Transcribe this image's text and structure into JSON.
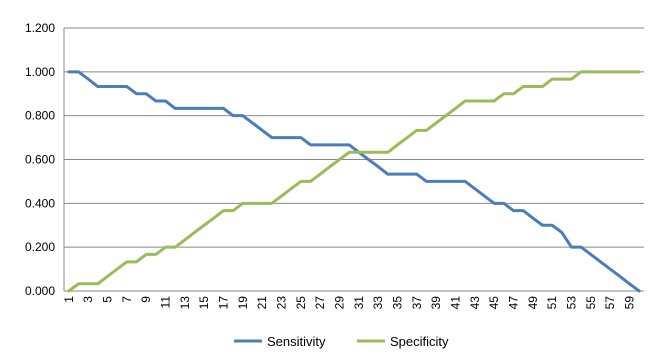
{
  "chart_data": {
    "type": "line",
    "title": "",
    "xlabel": "",
    "ylabel": "",
    "x": [
      1,
      2,
      3,
      4,
      5,
      6,
      7,
      8,
      9,
      10,
      11,
      12,
      13,
      14,
      15,
      16,
      17,
      18,
      19,
      20,
      21,
      22,
      23,
      24,
      25,
      26,
      27,
      28,
      29,
      30,
      31,
      32,
      33,
      34,
      35,
      36,
      37,
      38,
      39,
      40,
      41,
      42,
      43,
      44,
      45,
      46,
      47,
      48,
      49,
      50,
      51,
      52,
      53,
      54,
      55,
      56,
      57,
      58,
      59,
      60
    ],
    "x_tick_labels": [
      "1",
      "3",
      "5",
      "7",
      "9",
      "11",
      "13",
      "15",
      "17",
      "19",
      "21",
      "23",
      "25",
      "27",
      "29",
      "31",
      "33",
      "35",
      "37",
      "39",
      "41",
      "43",
      "45",
      "47",
      "49",
      "51",
      "53",
      "55",
      "57",
      "59"
    ],
    "ylim": [
      0,
      1.2
    ],
    "y_tick_labels": [
      "0.000",
      "0.200",
      "0.400",
      "0.600",
      "0.800",
      "1.000",
      "1.200"
    ],
    "grid": "horizontal",
    "legend_position": "bottom",
    "series": [
      {
        "name": "Sensitivity",
        "color": "#4a7ebb",
        "values": [
          1.0,
          1.0,
          0.967,
          0.933,
          0.933,
          0.933,
          0.933,
          0.9,
          0.9,
          0.867,
          0.867,
          0.833,
          0.833,
          0.833,
          0.833,
          0.833,
          0.833,
          0.8,
          0.8,
          0.767,
          0.733,
          0.7,
          0.7,
          0.7,
          0.7,
          0.667,
          0.667,
          0.667,
          0.667,
          0.667,
          0.633,
          0.6,
          0.567,
          0.533,
          0.533,
          0.533,
          0.533,
          0.5,
          0.5,
          0.5,
          0.5,
          0.5,
          0.467,
          0.433,
          0.4,
          0.4,
          0.367,
          0.367,
          0.333,
          0.3,
          0.3,
          0.267,
          0.2,
          0.2,
          0.167,
          0.133,
          0.1,
          0.067,
          0.033,
          0.0
        ]
      },
      {
        "name": "Specificity",
        "color": "#9bbb59",
        "values": [
          0.0,
          0.033,
          0.033,
          0.033,
          0.067,
          0.1,
          0.133,
          0.133,
          0.167,
          0.167,
          0.2,
          0.2,
          0.233,
          0.267,
          0.3,
          0.333,
          0.367,
          0.367,
          0.4,
          0.4,
          0.4,
          0.4,
          0.433,
          0.467,
          0.5,
          0.5,
          0.533,
          0.567,
          0.6,
          0.633,
          0.633,
          0.633,
          0.633,
          0.633,
          0.667,
          0.7,
          0.733,
          0.733,
          0.767,
          0.8,
          0.833,
          0.867,
          0.867,
          0.867,
          0.867,
          0.9,
          0.9,
          0.933,
          0.933,
          0.933,
          0.967,
          0.967,
          0.967,
          1.0,
          1.0,
          1.0,
          1.0,
          1.0,
          1.0,
          1.0
        ]
      }
    ]
  }
}
